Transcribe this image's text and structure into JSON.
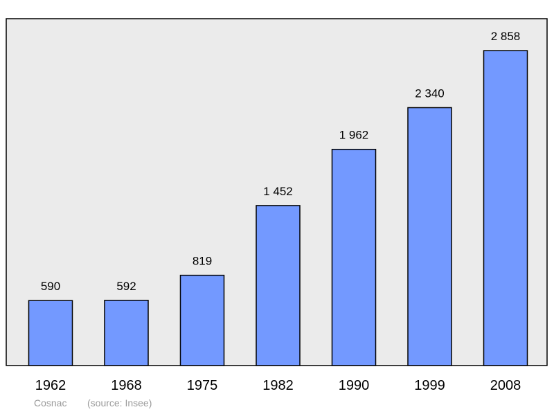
{
  "chart_data": {
    "type": "bar",
    "categories": [
      "1962",
      "1968",
      "1975",
      "1982",
      "1990",
      "1999",
      "2008"
    ],
    "values": [
      590,
      592,
      819,
      1452,
      1962,
      2340,
      2858
    ],
    "value_labels": [
      "590",
      "592",
      "819",
      "1 452",
      "1 962",
      "2 340",
      "2 858"
    ],
    "title": "",
    "xlabel": "",
    "ylabel": "",
    "ylim": [
      0,
      3000
    ],
    "grid": false,
    "legend": "none"
  },
  "caption": {
    "place": "Cosnac",
    "source": "(source: Insee)"
  },
  "colors": {
    "bar_fill": "#7399ff",
    "bar_stroke": "#000000",
    "plot_background": "#ebebeb",
    "frame": "#000000",
    "caption_text": "#9a9a9a"
  }
}
